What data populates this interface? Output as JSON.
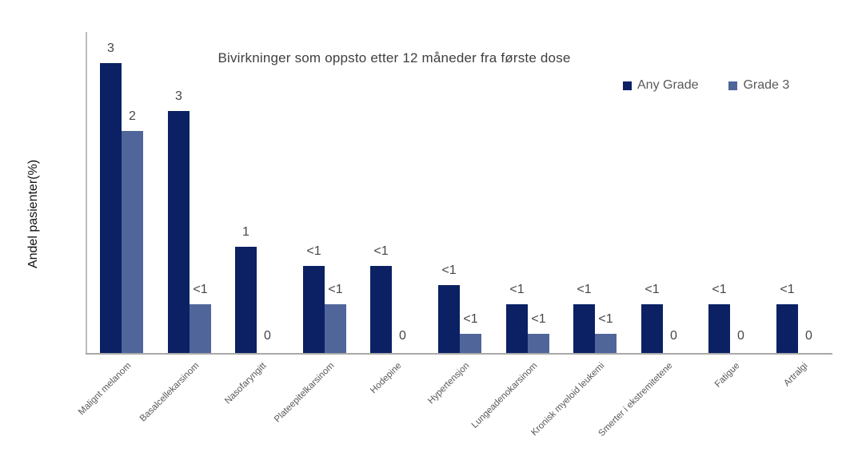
{
  "chart_data": {
    "type": "bar",
    "title": "Bivirkninger som oppsto etter 12 måneder fra første dose",
    "ylabel": "Andel pasienter(%)",
    "xlabel": "",
    "grid": false,
    "y_axis_ticks_shown": false,
    "ylim": [
      0,
      3
    ],
    "legend_position": "top-right",
    "categories": [
      "Malignt melanom",
      "Basalcellekarsinom",
      "Nasofaryngitt",
      "Plateepitelkarsinom",
      "Hodepine",
      "Hypertensjon",
      "Lungeadenokarsinom",
      "Kronisk myeloid leukemi",
      "Smerter i ekstremitetene",
      "Fatigue",
      "Artralgi"
    ],
    "series": [
      {
        "name": "Any Grade",
        "color": "#0b2164",
        "labels": [
          "3",
          "3",
          "1",
          "<1",
          "<1",
          "<1",
          "<1",
          "<1",
          "<1",
          "<1",
          "<1"
        ],
        "plot_values": [
          3.0,
          2.5,
          1.1,
          0.9,
          0.9,
          0.7,
          0.5,
          0.5,
          0.5,
          0.5,
          0.5
        ]
      },
      {
        "name": "Grade 3",
        "color": "#50659a",
        "labels": [
          "2",
          "<1",
          "0",
          "<1",
          "0",
          "<1",
          "<1",
          "<1",
          "0",
          "0",
          "0"
        ],
        "plot_values": [
          2.3,
          0.5,
          0,
          0.5,
          0,
          0.2,
          0.2,
          0.2,
          0,
          0,
          0
        ]
      }
    ]
  }
}
